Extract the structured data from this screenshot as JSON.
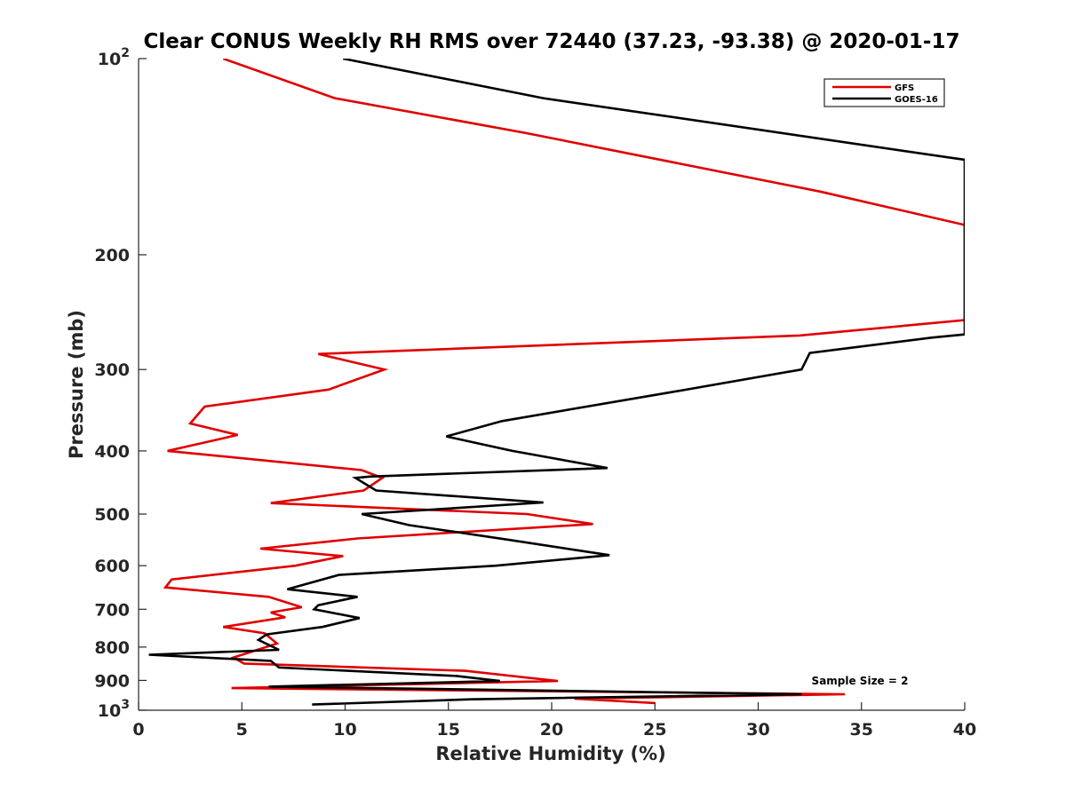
{
  "chart_data": {
    "type": "line",
    "title": "Clear CONUS Weekly RH RMS over 72440 (37.23, -93.38) @ 2020-01-17",
    "xlabel": "Relative Humidity (%)",
    "ylabel": "Pressure (mb)",
    "xlim": [
      0,
      40
    ],
    "ylim": [
      100,
      1000
    ],
    "y_scale": "log",
    "y_reversed": true,
    "x_ticks": [
      "0",
      "5",
      "10",
      "15",
      "20",
      "25",
      "30",
      "35",
      "40"
    ],
    "y_ticks": [
      {
        "value": 100,
        "base": "10",
        "exp": "2"
      },
      {
        "value": 200,
        "label": "200"
      },
      {
        "value": 300,
        "label": "300"
      },
      {
        "value": 400,
        "label": "400"
      },
      {
        "value": 500,
        "label": "500"
      },
      {
        "value": 600,
        "label": "600"
      },
      {
        "value": 700,
        "label": "700"
      },
      {
        "value": 800,
        "label": "800"
      },
      {
        "value": 900,
        "label": "900"
      },
      {
        "value": 1000,
        "base": "10",
        "exp": "3"
      }
    ],
    "legend_position": "top-right",
    "grid": false,
    "annotation": "Sample Size = 2",
    "series": [
      {
        "name": "GFS",
        "color": "#e00000",
        "points": [
          [
            4.1,
            100
          ],
          [
            9.5,
            115
          ],
          [
            18.7,
            130
          ],
          [
            33,
            160
          ],
          [
            40,
            180
          ],
          [
            40,
            252
          ],
          [
            32,
            266
          ],
          [
            8.7,
            284
          ],
          [
            11.9,
            300
          ],
          [
            9.2,
            322
          ],
          [
            3.2,
            342
          ],
          [
            2.5,
            363
          ],
          [
            4.8,
            378
          ],
          [
            1.4,
            400
          ],
          [
            10.8,
            428
          ],
          [
            11.8,
            440
          ],
          [
            10.9,
            460
          ],
          [
            6.4,
            481
          ],
          [
            18.8,
            500
          ],
          [
            22,
            518
          ],
          [
            10.6,
            545
          ],
          [
            5.9,
            565
          ],
          [
            9.9,
            580
          ],
          [
            7.6,
            600
          ],
          [
            1.6,
            630
          ],
          [
            1.3,
            648
          ],
          [
            6.3,
            670
          ],
          [
            7.9,
            695
          ],
          [
            6.4,
            708
          ],
          [
            7.1,
            720
          ],
          [
            4.1,
            745
          ],
          [
            6.1,
            762
          ],
          [
            6.7,
            790
          ],
          [
            4.6,
            830
          ],
          [
            5.1,
            848
          ],
          [
            15.8,
            870
          ],
          [
            20.3,
            902
          ],
          [
            4.5,
            925
          ],
          [
            34.2,
            945
          ],
          [
            21.1,
            960
          ],
          [
            25,
            975
          ]
        ]
      },
      {
        "name": "GOES-16",
        "color": "#000000",
        "points": [
          [
            9.9,
            100
          ],
          [
            19.6,
            115
          ],
          [
            40,
            143
          ],
          [
            40,
            265
          ],
          [
            38.4,
            268
          ],
          [
            32.5,
            283
          ],
          [
            32.1,
            300
          ],
          [
            25.8,
            325
          ],
          [
            17.6,
            360
          ],
          [
            14.9,
            380
          ],
          [
            18.1,
            400
          ],
          [
            22.7,
            425
          ],
          [
            11.2,
            438
          ],
          [
            10.5,
            440
          ],
          [
            11.5,
            460
          ],
          [
            19.6,
            480
          ],
          [
            10.8,
            500
          ],
          [
            13.1,
            520
          ],
          [
            18,
            548
          ],
          [
            22.8,
            578
          ],
          [
            17.3,
            600
          ],
          [
            9.7,
            620
          ],
          [
            7.2,
            652
          ],
          [
            10.6,
            670
          ],
          [
            8.7,
            690
          ],
          [
            8.5,
            700
          ],
          [
            10.7,
            722
          ],
          [
            8.9,
            745
          ],
          [
            6.2,
            765
          ],
          [
            5.8,
            780
          ],
          [
            6.8,
            808
          ],
          [
            0.5,
            822
          ],
          [
            6.4,
            840
          ],
          [
            6.8,
            860
          ],
          [
            15.4,
            886
          ],
          [
            17.5,
            902
          ],
          [
            6.3,
            920
          ],
          [
            32.1,
            945
          ],
          [
            16.1,
            962
          ],
          [
            8.4,
            980
          ]
        ]
      }
    ]
  }
}
